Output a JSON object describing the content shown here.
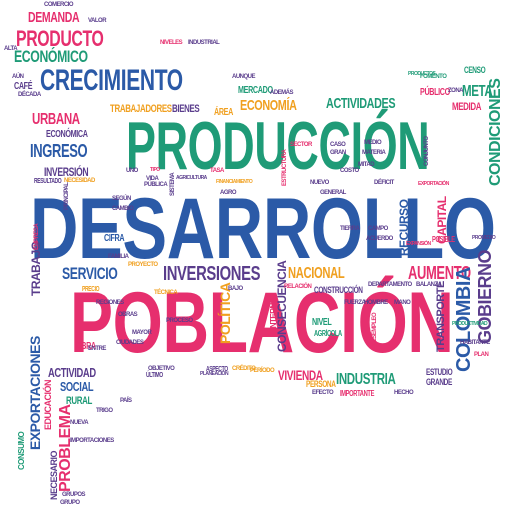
{
  "palette": {
    "pink": "#e62f6e",
    "blue": "#2b5aa7",
    "green": "#1f9b77",
    "purple": "#5a3d8c",
    "orange": "#f0a020"
  },
  "words": {
    "desarrollo": "DESARROLLO",
    "produccion": "PRODUCCIÓN",
    "poblacion": "POBLACIÓN",
    "crecimiento": "CRECIMIENTO",
    "producto": "PRODUCTO",
    "demanda": "DEMANDA",
    "economico": "ECONÓMICO",
    "inversiones": "INVERSIONES",
    "servicio": "SERVICIO",
    "nacional": "NACIONAL",
    "aumento": "AUMENTO",
    "industria": "INDUSTRIA",
    "colombia": "COLOMBIA",
    "gobierno": "GOBIERNO",
    "actividades": "ACTIVIDADES",
    "economia": "ECONOMÍA",
    "meta": "META",
    "ingreso": "INGRESO",
    "urbana": "URBANA",
    "inversion": "INVERSIÓN",
    "condiciones": "CONDICIONES",
    "exportaciones": "EXPORTACIONES",
    "problema": "PROBLEMA",
    "social": "SOCIAL",
    "actividad": "ACTIVIDAD",
    "vivienda": "VIVIENDA",
    "capital": "CAPITAL",
    "trabajo": "TRABAJO",
    "politica": "POLÍTICA",
    "recurso": "RECURSO",
    "transporte": "TRANSPORTE",
    "mercado": "MERCADO",
    "trabajadores": "TRABAJADORES",
    "bienes": "BIENES",
    "area": "ÁREA",
    "economica": "ECONÓMICA",
    "cafe": "CAFÉ",
    "consecuencia": "CONSECUENCIA",
    "educacion": "EDUCACIÓN",
    "rural": "RURAL",
    "obra": "OBRA",
    "nivel": "NIVEL",
    "agricola": "AGRÍCOLA",
    "publico": "PÚBLICO",
    "medida": "MEDIDA",
    "consumo": "CONSUMO",
    "cifra": "CIFRA",
    "necesario": "NECESARIO",
    "estudio": "ESTUDIO",
    "grande": "GRANDE",
    "construccion": "CONSTRUCCIÓN",
    "persona": "PERSONA",
    "censo": "CENSO",
    "resultado": "RESULTADO",
    "importante": "IMPORTANTE",
    "interna": "INTERNA",
    "posible": "POSIBLE",
    "precio": "PRECIO",
    "ultimo": "ÚLTIMO",
    "aspecto": "ASPECTO",
    "comercio": "COMERCIO",
    "valor": "VALOR",
    "aun": "AÚN",
    "niveles": "NIVELES",
    "industrial": "INDUSTRIAL",
    "aunque": "AUNQUE",
    "fomento": "FOMENTO",
    "relacion": "RELACIÓN",
    "departamento": "DEPARTAMENTO",
    "balanza": "BALANZA",
    "caso": "CASO",
    "deficit": "DÉFICIT",
    "exportacion": "EXPORTACIÓN",
    "materia": "MATERIA",
    "conjunto": "CONJUNTO",
    "grupo": "GRUPO",
    "tipo": "TIPO",
    "principal": "PRINCIPAL",
    "mayor": "MAYOR",
    "estructura": "ESTRUCTURA",
    "ciudades": "CIUDADES",
    "periodo": "PERÍODO",
    "entre": "ENTRE",
    "nuevo": "NUEVO",
    "hecho": "HECHO",
    "financiamiento": "FINANCIAMIENTO",
    "cambio": "CAMBIO",
    "medio": "MEDIO",
    "campo": "CAMPO",
    "acuerdo": "ACUERDO",
    "gran": "GRAN",
    "uno": "UNO",
    "vida": "VIDA",
    "sistema": "SISTEMA",
    "tecnica": "TÉCNICA",
    "hombre": "HOMBRE",
    "productos": "PRODUCTOS",
    "importaciones": "IMPORTACIONES",
    "expansion": "EXPANSIÓN",
    "zona": "ZONA",
    "habitante": "HABITANTE",
    "proceso": "PROCESO",
    "pais": "PAÍS",
    "alta": "ALTA",
    "decada": "DÉCADA",
    "empresa": "EMPRESA",
    "regiones": "REGIONES",
    "trigo": "TRIGO",
    "proyecto": "PROYECTO",
    "promedio": "PROMEDIO",
    "nueva": "NUEVA",
    "publica": "PÚBLICA",
    "necesidad": "NECESIDAD",
    "agricultura": "AGRICULTURA",
    "tasa": "TASA",
    "costo": "COSTO",
    "planeacion": "PLANEACIÓN",
    "ademas": "ADEMÁS",
    "mitad": "MITAD",
    "objetivo": "OBJETIVO",
    "segun": "SEGÚN",
    "plan": "PLAN",
    "credito": "CRÉDITO",
    "bajo": "BAJO",
    "desempleo": "DESEMPLEO",
    "productividad": "PRODUCTIVIDAD",
    "efecto": "EFECTO",
    "general": "GENERAL",
    "sector": "SECTOR",
    "fuerza": "FUERZA",
    "mano": "MANO",
    "tierra": "TIERRA",
    "agro": "AGRO",
    "familia": "FAMILIA",
    "obras": "OBRAS",
    "grupos": "GRUPOS"
  }
}
